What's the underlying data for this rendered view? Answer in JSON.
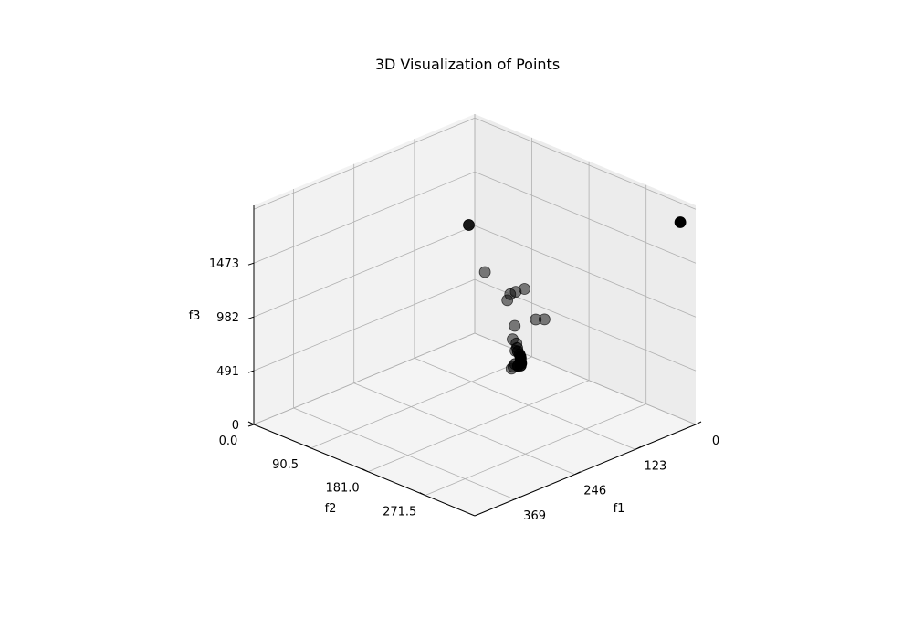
{
  "chart_data": {
    "type": "scatter",
    "title": "3D Visualization of Points",
    "xlabel": "f1",
    "ylabel": "f2",
    "zlabel": "f3",
    "xlim": [
      0,
      450
    ],
    "ylim": [
      0,
      350
    ],
    "zlim": [
      0,
      2000
    ],
    "xticks": [
      "0",
      "123",
      "246",
      "369"
    ],
    "yticks": [
      "0.0",
      "90.5",
      "181.0",
      "271.5"
    ],
    "zticks": [
      "0",
      "491",
      "982",
      "1473"
    ],
    "grid": true,
    "marker_color": "#000000",
    "points": [
      {
        "x": 25,
        "y": 345,
        "z": 1880,
        "alpha": 1.0
      },
      {
        "x": 12,
        "y": 0,
        "z": 1010,
        "alpha": 0.9
      },
      {
        "x": 50,
        "y": 95,
        "z": 675,
        "alpha": 0.5
      },
      {
        "x": 45,
        "y": 100,
        "z": 700,
        "alpha": 0.5
      },
      {
        "x": 40,
        "y": 110,
        "z": 740,
        "alpha": 0.5
      },
      {
        "x": 5,
        "y": 20,
        "z": 615,
        "alpha": 0.5
      },
      {
        "x": 30,
        "y": 75,
        "z": 535,
        "alpha": 0.5
      },
      {
        "x": 60,
        "y": 110,
        "z": 440,
        "alpha": 0.5
      },
      {
        "x": 115,
        "y": 200,
        "z": 815,
        "alpha": 0.5
      },
      {
        "x": 120,
        "y": 190,
        "z": 800,
        "alpha": 0.5
      },
      {
        "x": 90,
        "y": 130,
        "z": 420,
        "alpha": 0.5
      },
      {
        "x": 95,
        "y": 140,
        "z": 415,
        "alpha": 0.5
      },
      {
        "x": 100,
        "y": 145,
        "z": 395,
        "alpha": 0.6
      },
      {
        "x": 105,
        "y": 150,
        "z": 385,
        "alpha": 0.7
      },
      {
        "x": 108,
        "y": 155,
        "z": 375,
        "alpha": 0.7
      },
      {
        "x": 110,
        "y": 158,
        "z": 365,
        "alpha": 0.8
      },
      {
        "x": 112,
        "y": 160,
        "z": 360,
        "alpha": 0.8
      },
      {
        "x": 115,
        "y": 162,
        "z": 355,
        "alpha": 0.8
      },
      {
        "x": 118,
        "y": 165,
        "z": 350,
        "alpha": 0.9
      },
      {
        "x": 120,
        "y": 167,
        "z": 345,
        "alpha": 0.9
      },
      {
        "x": 125,
        "y": 170,
        "z": 340,
        "alpha": 0.9
      },
      {
        "x": 128,
        "y": 168,
        "z": 338,
        "alpha": 0.9
      },
      {
        "x": 130,
        "y": 165,
        "z": 352,
        "alpha": 0.6
      },
      {
        "x": 140,
        "y": 170,
        "z": 358,
        "alpha": 0.5
      },
      {
        "x": 150,
        "y": 175,
        "z": 370,
        "alpha": 0.5
      },
      {
        "x": 110,
        "y": 150,
        "z": 400,
        "alpha": 0.5
      }
    ]
  }
}
